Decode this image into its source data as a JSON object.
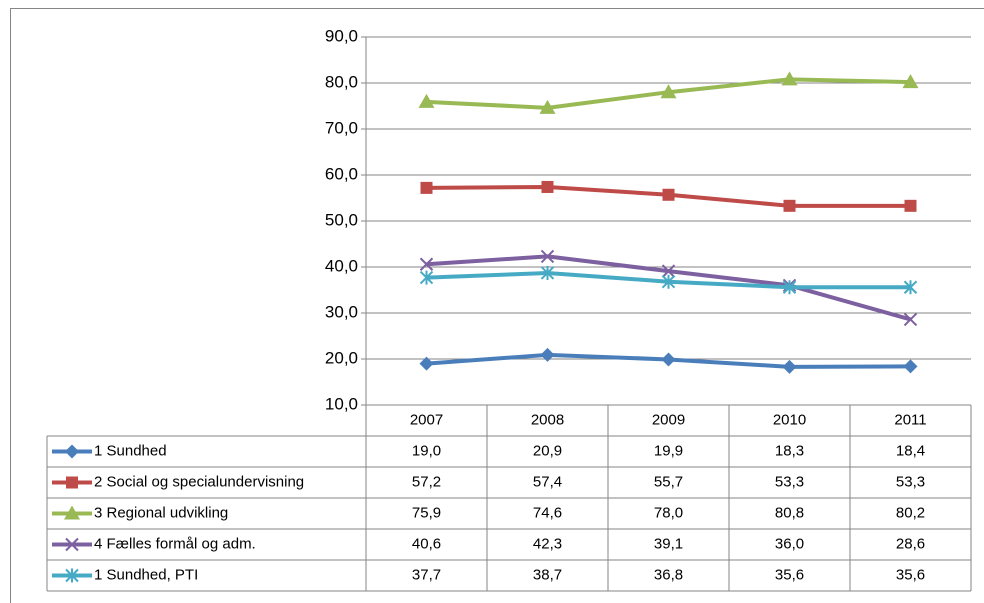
{
  "chart_data": {
    "type": "line",
    "categories": [
      "2007",
      "2008",
      "2009",
      "2010",
      "2011"
    ],
    "ylim": [
      10,
      90
    ],
    "yticks": [
      {
        "value": 10,
        "label": "10,0"
      },
      {
        "value": 20,
        "label": "20,0"
      },
      {
        "value": 30,
        "label": "30,0"
      },
      {
        "value": 40,
        "label": "40,0"
      },
      {
        "value": 50,
        "label": "50,0"
      },
      {
        "value": 60,
        "label": "60,0"
      },
      {
        "value": 70,
        "label": "70,0"
      },
      {
        "value": 80,
        "label": "80,0"
      },
      {
        "value": 90,
        "label": "90,0"
      }
    ],
    "grid": true,
    "series": [
      {
        "name": "1 Sundhed",
        "color": "#4a7ebb",
        "marker": "diamond",
        "values": [
          19.0,
          20.9,
          19.9,
          18.3,
          18.4
        ],
        "value_labels": [
          "19,0",
          "20,9",
          "19,9",
          "18,3",
          "18,4"
        ]
      },
      {
        "name": "2 Social og specialundervisning",
        "color": "#be4b48",
        "marker": "square",
        "values": [
          57.2,
          57.4,
          55.7,
          53.3,
          53.3
        ],
        "value_labels": [
          "57,2",
          "57,4",
          "55,7",
          "53,3",
          "53,3"
        ]
      },
      {
        "name": "3 Regional udvikling",
        "color": "#98b954",
        "marker": "triangle",
        "values": [
          75.9,
          74.6,
          78.0,
          80.8,
          80.2
        ],
        "value_labels": [
          "75,9",
          "74,6",
          "78,0",
          "80,8",
          "80,2"
        ]
      },
      {
        "name": "4 Fælles formål og adm.",
        "color": "#7d60a0",
        "marker": "x",
        "values": [
          40.6,
          42.3,
          39.1,
          36.0,
          28.6
        ],
        "value_labels": [
          "40,6",
          "42,3",
          "39,1",
          "36,0",
          "28,6"
        ]
      },
      {
        "name": "1 Sundhed, PTI",
        "color": "#46aac5",
        "marker": "star",
        "values": [
          37.7,
          38.7,
          36.8,
          35.6,
          35.6
        ],
        "value_labels": [
          "37,7",
          "38,7",
          "36,8",
          "35,6",
          "35,6"
        ]
      }
    ]
  }
}
